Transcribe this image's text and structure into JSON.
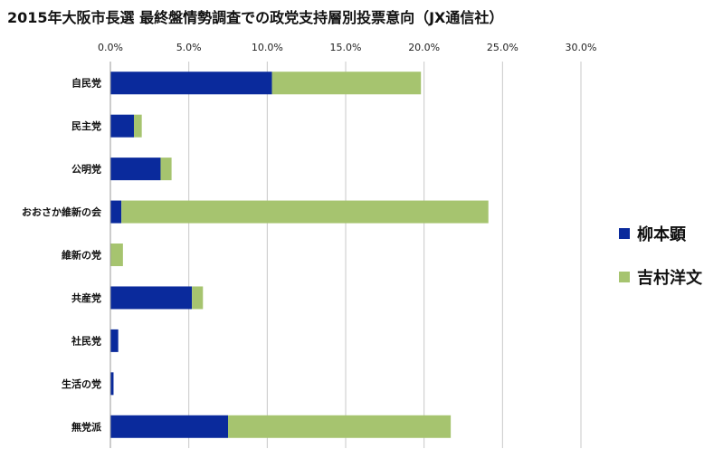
{
  "chart_data": {
    "type": "bar",
    "orientation": "horizontal",
    "stacked": true,
    "title": "2015年大阪市長選 最終盤情勢調査での政党支持層別投票意向（JX通信社）",
    "xlim": [
      0,
      30
    ],
    "x_ticks": [
      "0.0%",
      "5.0%",
      "10.0%",
      "15.0%",
      "20.0%",
      "25.0%",
      "30.0%"
    ],
    "x_axis_position": "top",
    "grid": true,
    "legend_position": "right",
    "categories": [
      "自民党",
      "民主党",
      "公明党",
      "おおさか維新の会",
      "維新の党",
      "共産党",
      "社民党",
      "生活の党",
      "無党派"
    ],
    "series": [
      {
        "name": "柳本顕",
        "color": "#0a2a9c",
        "values": [
          10.3,
          1.5,
          3.2,
          0.7,
          0.0,
          5.2,
          0.5,
          0.2,
          7.5
        ]
      },
      {
        "name": "吉村洋文",
        "color": "#a6c46f",
        "values": [
          9.5,
          0.5,
          0.7,
          23.4,
          0.8,
          0.7,
          0.0,
          0.0,
          14.2
        ]
      }
    ]
  }
}
